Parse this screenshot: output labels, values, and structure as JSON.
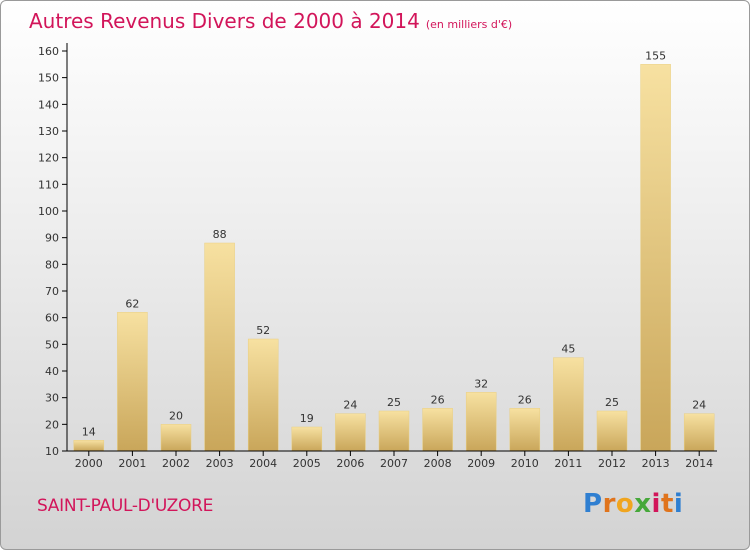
{
  "header": {
    "title": "Autres Revenus Divers de 2000 à 2014",
    "subtitle": "(en milliers d'€)"
  },
  "footer": {
    "commune": "SAINT-PAUL-D'UZORE",
    "logo_letters": [
      "P",
      "r",
      "o",
      "x",
      "i",
      "t",
      "i"
    ]
  },
  "colors": {
    "title": "#d2155a",
    "bar_light": "#f6dd9a",
    "bar_dark": "#c8a65a",
    "axis": "#000000",
    "grid_tick": "#555555"
  },
  "chart_data": {
    "type": "bar",
    "title": "Autres Revenus Divers de 2000 à 2014",
    "subtitle": "(en milliers d'€)",
    "xlabel": "",
    "ylabel": "",
    "categories": [
      "2000",
      "2001",
      "2002",
      "2003",
      "2004",
      "2005",
      "2006",
      "2007",
      "2008",
      "2009",
      "2010",
      "2011",
      "2012",
      "2013",
      "2014"
    ],
    "values": [
      14,
      62,
      20,
      88,
      52,
      19,
      24,
      25,
      26,
      32,
      26,
      45,
      25,
      155,
      24
    ],
    "ylim": [
      10,
      160
    ],
    "yticks": [
      10,
      20,
      30,
      40,
      50,
      60,
      70,
      80,
      90,
      100,
      110,
      120,
      130,
      140,
      150,
      160
    ],
    "grid": false,
    "legend": "none"
  }
}
